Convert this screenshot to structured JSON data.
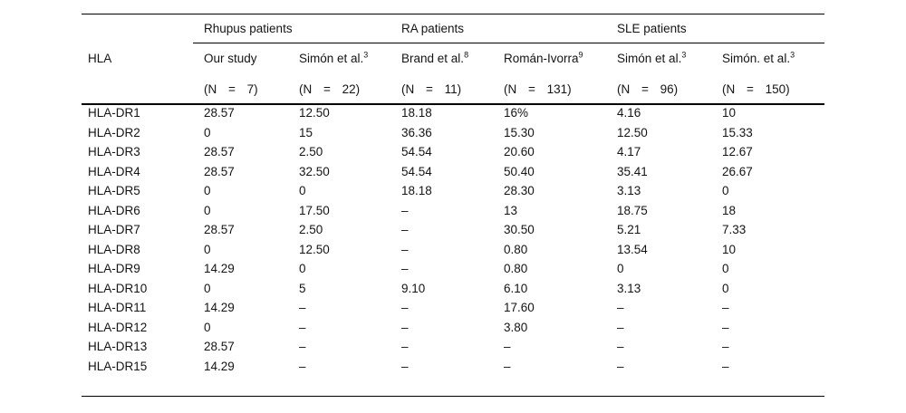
{
  "table": {
    "row_header_label": "HLA",
    "groups": [
      {
        "label": "Rhupus patients"
      },
      {
        "label": "RA patients"
      },
      {
        "label": "SLE patients"
      }
    ],
    "columns": [
      {
        "study": "Our study",
        "sup": "",
        "n": "(N = 7)"
      },
      {
        "study": "Simón et al.",
        "sup": "3",
        "n": "(N = 22)"
      },
      {
        "study": "Brand et al.",
        "sup": "8",
        "n": "(N = 11)"
      },
      {
        "study": "Román-Ivorra",
        "sup": "9",
        "n": "(N = 131)"
      },
      {
        "study": "Simón et al.",
        "sup": "3",
        "n": "(N = 96)"
      },
      {
        "study": "Simón. et al.",
        "sup": "3",
        "n": "(N = 150)"
      }
    ],
    "rows": [
      {
        "hla": "HLA-DR1",
        "values": [
          "28.57",
          "12.50",
          "18.18",
          "16%",
          "4.16",
          "10"
        ]
      },
      {
        "hla": "HLA-DR2",
        "values": [
          "0",
          "15",
          "36.36",
          "15.30",
          "12.50",
          "15.33"
        ]
      },
      {
        "hla": "HLA-DR3",
        "values": [
          "28.57",
          "2.50",
          "54.54",
          "20.60",
          "4.17",
          "12.67"
        ]
      },
      {
        "hla": "HLA-DR4",
        "values": [
          "28.57",
          "32.50",
          "54.54",
          "50.40",
          "35.41",
          "26.67"
        ]
      },
      {
        "hla": "HLA-DR5",
        "values": [
          "0",
          "0",
          "18.18",
          "28.30",
          "3.13",
          "0"
        ]
      },
      {
        "hla": "HLA-DR6",
        "values": [
          "0",
          "17.50",
          "–",
          "13",
          "18.75",
          "18"
        ]
      },
      {
        "hla": "HLA-DR7",
        "values": [
          "28.57",
          "2.50",
          "–",
          "30.50",
          "5.21",
          "7.33"
        ]
      },
      {
        "hla": "HLA-DR8",
        "values": [
          "0",
          "12.50",
          "–",
          "0.80",
          "13.54",
          "10"
        ]
      },
      {
        "hla": "HLA-DR9",
        "values": [
          "14.29",
          "0",
          "–",
          "0.80",
          "0",
          "0"
        ]
      },
      {
        "hla": "HLA-DR10",
        "values": [
          "0",
          "5",
          "9.10",
          "6.10",
          "3.13",
          "0"
        ]
      },
      {
        "hla": "HLA-DR11",
        "values": [
          "14.29",
          "–",
          "–",
          "17.60",
          "–",
          "–"
        ]
      },
      {
        "hla": "HLA-DR12",
        "values": [
          "0",
          "–",
          "–",
          "3.80",
          "–",
          "–"
        ]
      },
      {
        "hla": "HLA-DR13",
        "values": [
          "28.57",
          "–",
          "–",
          "–",
          "–",
          "–"
        ]
      },
      {
        "hla": "HLA-DR15",
        "values": [
          "14.29",
          "–",
          "–",
          "–",
          "–",
          "–"
        ]
      }
    ]
  }
}
